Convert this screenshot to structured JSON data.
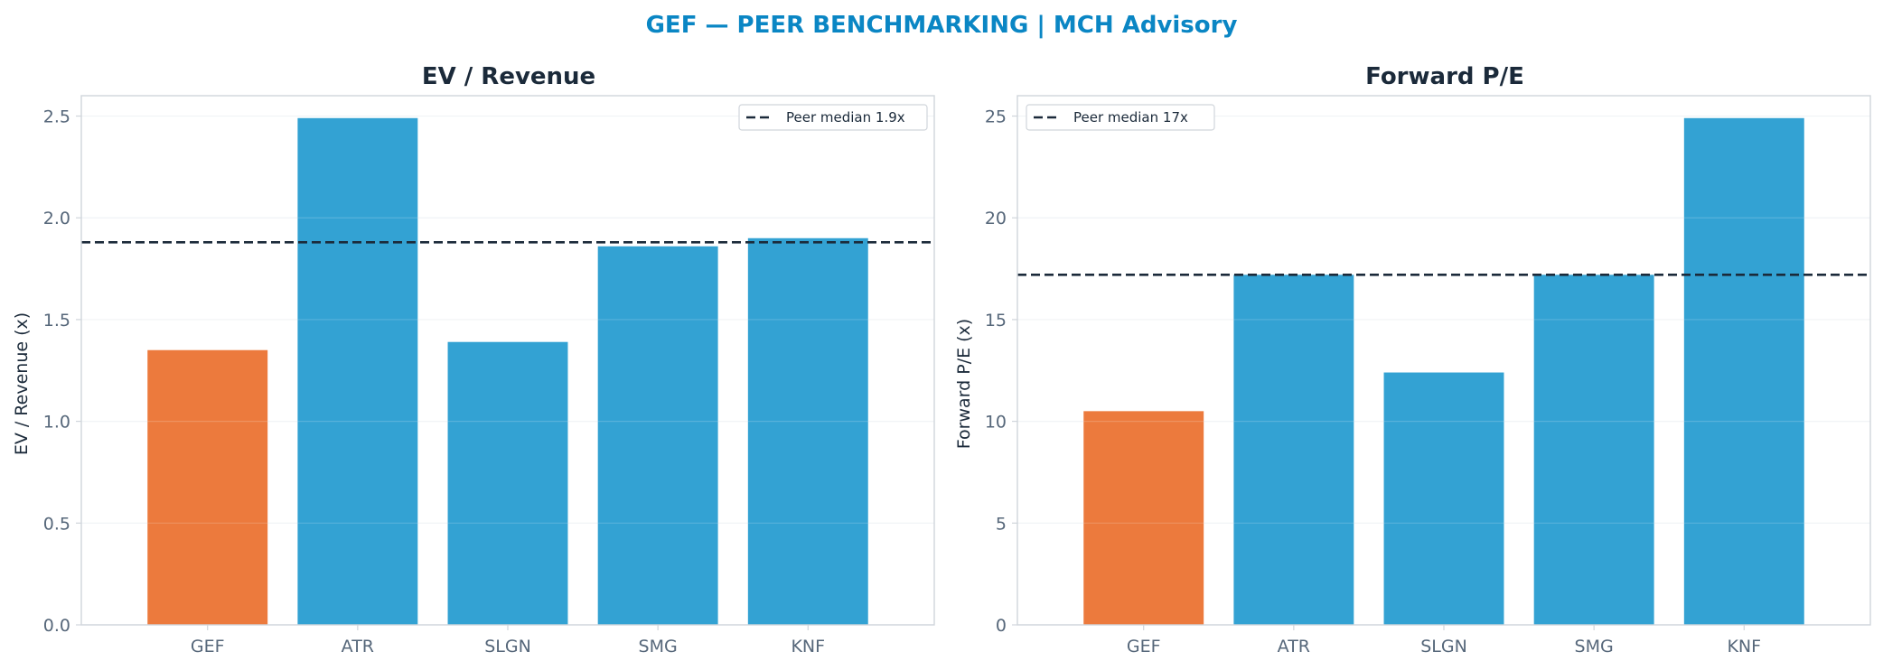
{
  "suptitle": "GEF — PEER BENCHMARKING | MCH Advisory",
  "colors": {
    "title": "#0a86c4",
    "highlight": "#ec7a3d",
    "peer": "#33a2d3",
    "median_line": "#1b2a3a",
    "text": "#1b2a3a",
    "tick_text": "#56677a",
    "axis": "#d0d5db",
    "grid": "#eef1f4"
  },
  "chart_data": [
    {
      "type": "bar",
      "title": "EV / Revenue",
      "ylabel": "EV / Revenue (x)",
      "xlabel": "",
      "categories": [
        "GEF",
        "ATR",
        "SLGN",
        "SMG",
        "KNF"
      ],
      "values": [
        1.35,
        2.49,
        1.39,
        1.86,
        1.9
      ],
      "highlight": "GEF",
      "ylim": [
        0,
        2.6
      ],
      "yticks": [
        0.0,
        0.5,
        1.0,
        1.5,
        2.0,
        2.5
      ],
      "ytick_labels": [
        "0.0",
        "0.5",
        "1.0",
        "1.5",
        "2.0",
        "2.5"
      ],
      "median_line": {
        "value": 1.88,
        "label": "Peer median 1.9x"
      },
      "legend": "top-right",
      "grid": true
    },
    {
      "type": "bar",
      "title": "Forward P/E",
      "ylabel": "Forward P/E (x)",
      "xlabel": "",
      "categories": [
        "GEF",
        "ATR",
        "SLGN",
        "SMG",
        "KNF"
      ],
      "values": [
        10.5,
        17.2,
        12.4,
        17.2,
        24.9
      ],
      "highlight": "GEF",
      "ylim": [
        0,
        26
      ],
      "yticks": [
        0,
        5,
        10,
        15,
        20,
        25
      ],
      "ytick_labels": [
        "0",
        "5",
        "10",
        "15",
        "20",
        "25"
      ],
      "median_line": {
        "value": 17.2,
        "label": "Peer median 17x"
      },
      "legend": "top-left",
      "grid": true
    }
  ]
}
